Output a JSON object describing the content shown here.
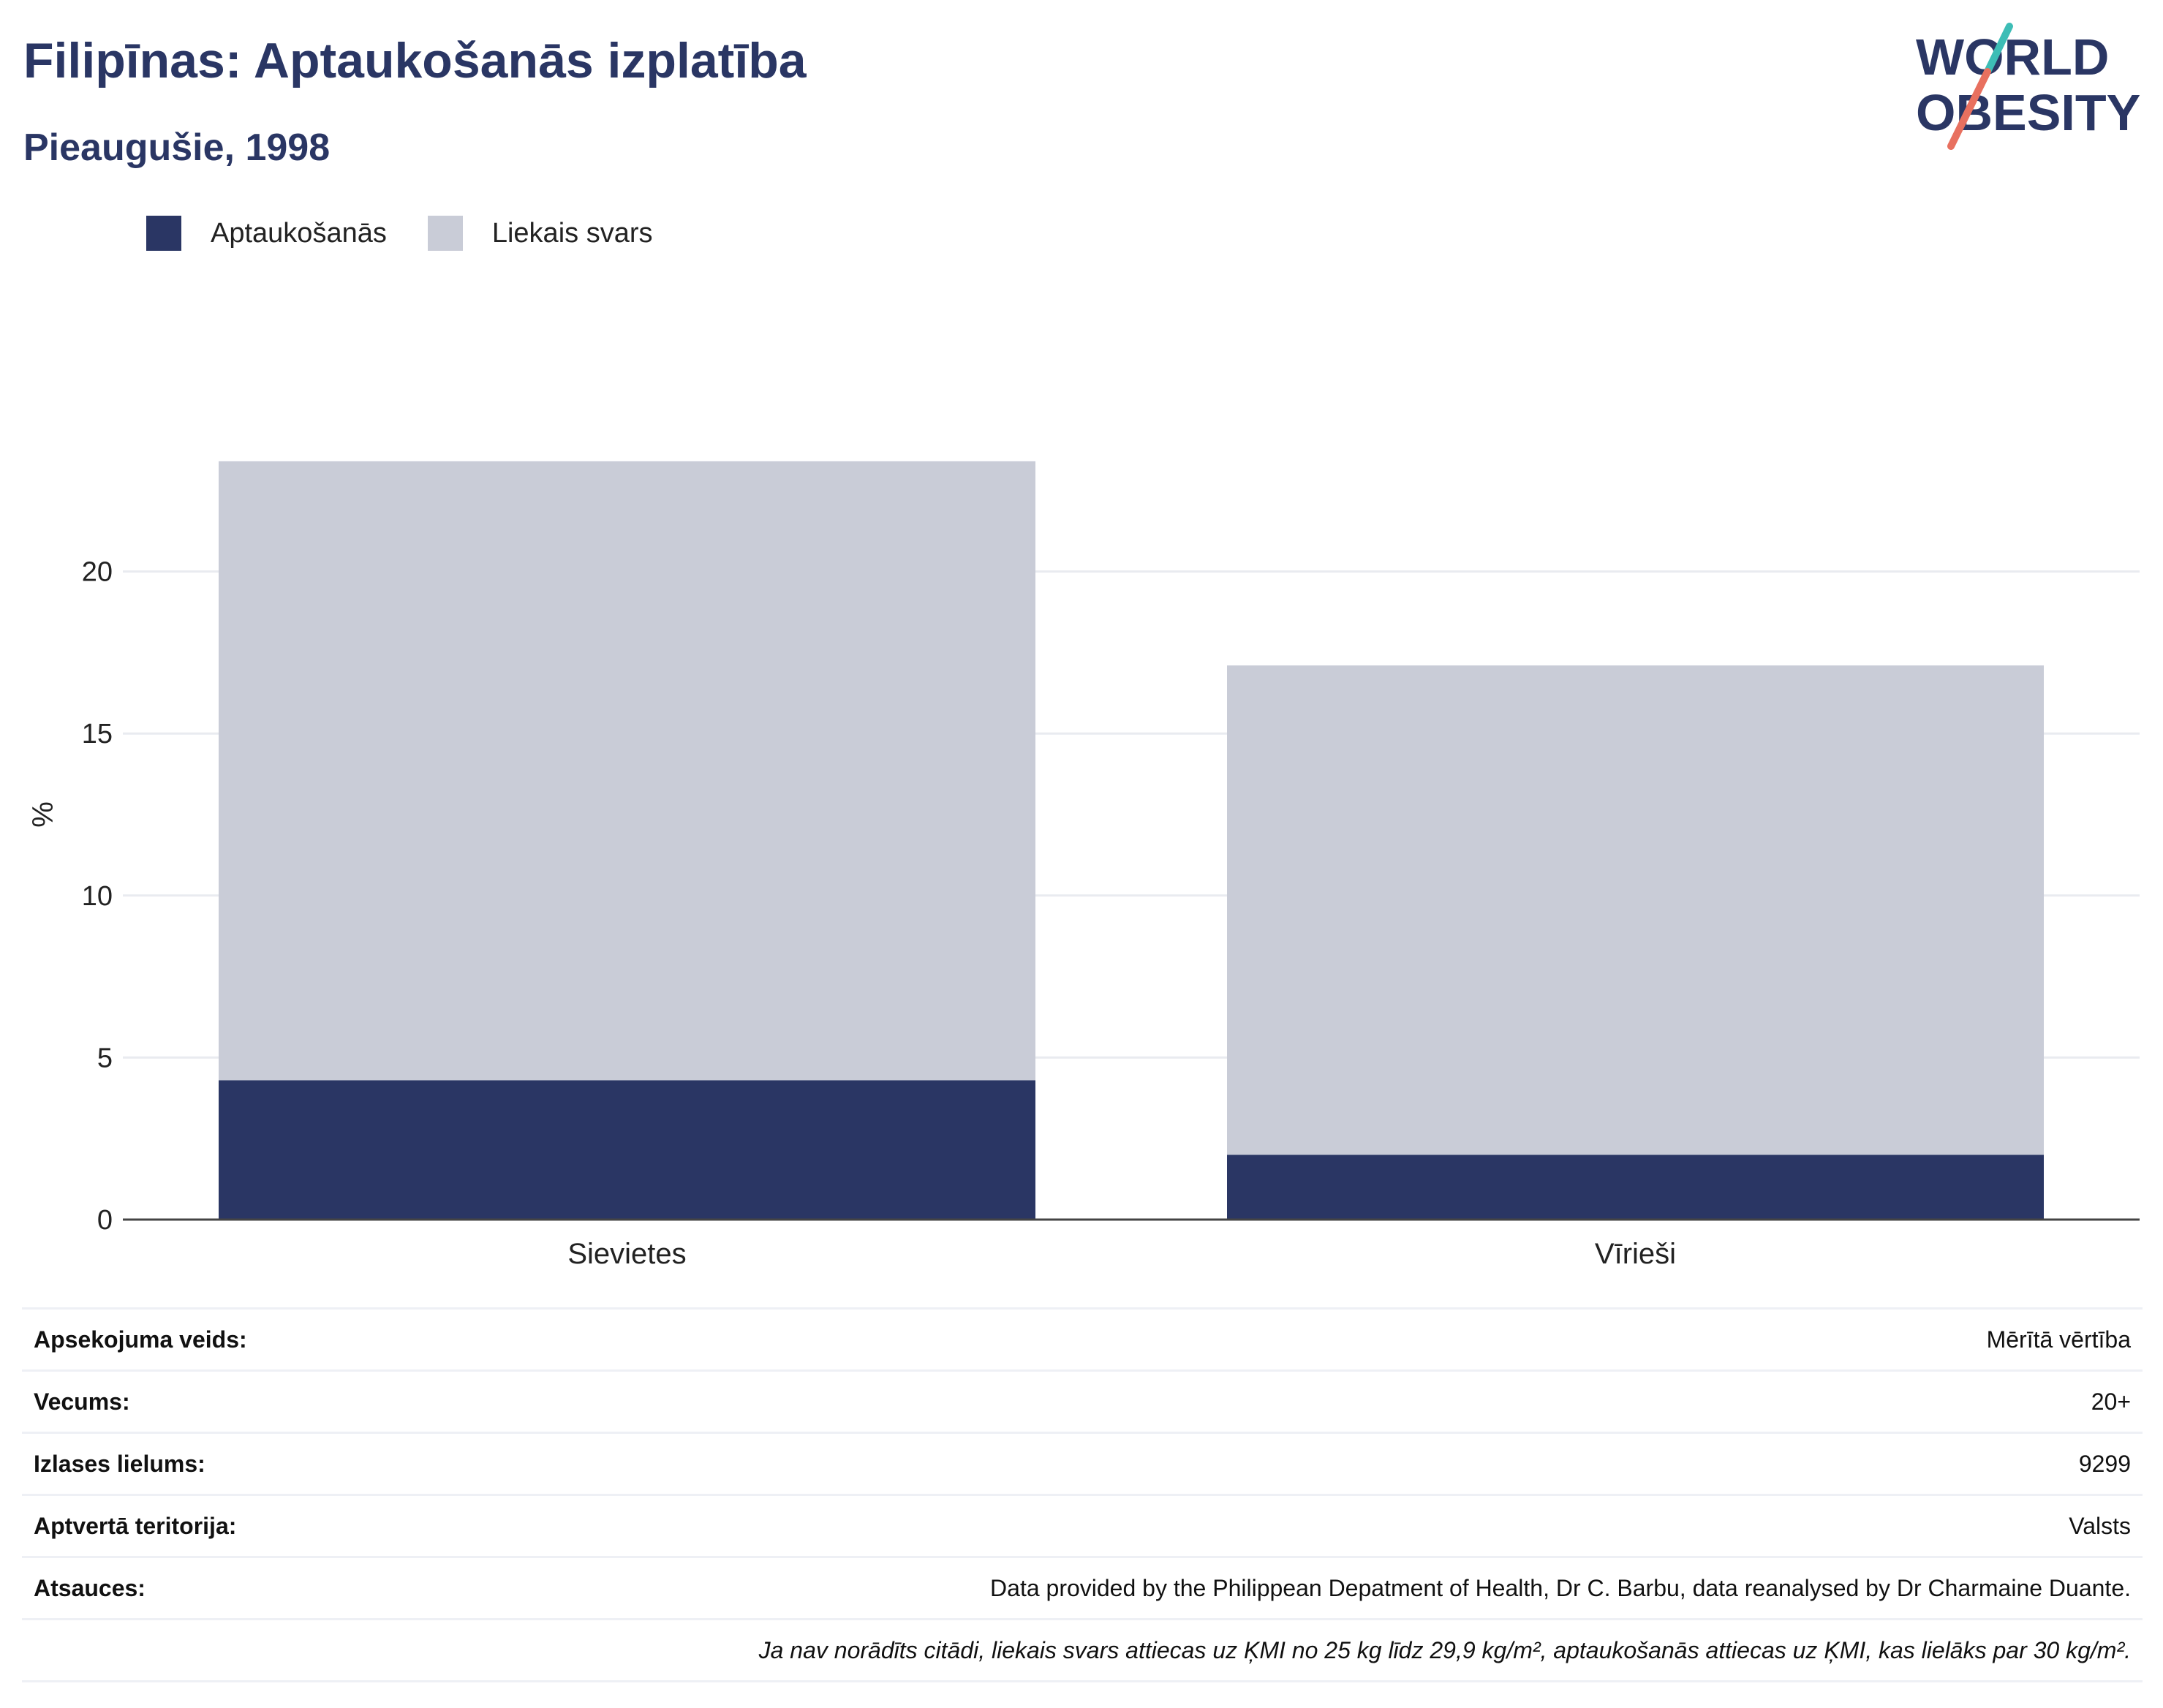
{
  "header": {
    "title": "Filipīnas: Aptaukošanās izplatība",
    "subtitle": "Pieaugušie, 1998"
  },
  "logo": {
    "line1": "WORLD",
    "line2": "OBESITY",
    "colors": {
      "text": "#2a3664",
      "slash_top": "#3dbdb6",
      "slash_bottom": "#e8705f"
    }
  },
  "legend": [
    {
      "label": "Aptaukošanās",
      "color": "#2a3664"
    },
    {
      "label": "Liekais svars",
      "color": "#c9ccd7"
    }
  ],
  "chart_data": {
    "type": "bar",
    "stacked": true,
    "categories": [
      "Sievietes",
      "Vīrieši"
    ],
    "series": [
      {
        "name": "Aptaukošanās",
        "values": [
          4.3,
          2.0
        ],
        "color": "#2a3664"
      },
      {
        "name": "Liekais svars",
        "values": [
          19.1,
          15.1
        ],
        "color": "#c9ccd7"
      }
    ],
    "ylabel": "%",
    "ylim": [
      0,
      25
    ],
    "yticks": [
      0,
      5,
      10,
      15,
      20
    ],
    "grid": true,
    "legend_position": "top-left"
  },
  "info": [
    {
      "key": "Apsekojuma veids:",
      "value": "Mērītā vērtība"
    },
    {
      "key": "Vecums:",
      "value": "20+"
    },
    {
      "key": "Izlases lielums:",
      "value": "9299"
    },
    {
      "key": "Aptvertā teritorija:",
      "value": "Valsts"
    },
    {
      "key": "Atsauces:",
      "value": "Data provided by the Philippean Depatment of Health, Dr C. Barbu, data reanalysed by Dr Charmaine Duante."
    }
  ],
  "footnote": "Ja nav norādīts citādi, liekais svars attiecas uz ĶMI no 25 kg līdz 29,9 kg/m², aptaukošanās attiecas uz ĶMI, kas lielāks par 30 kg/m².",
  "colors": {
    "axis": "#444444",
    "grid": "#e9ebf0",
    "text": "#222222"
  }
}
